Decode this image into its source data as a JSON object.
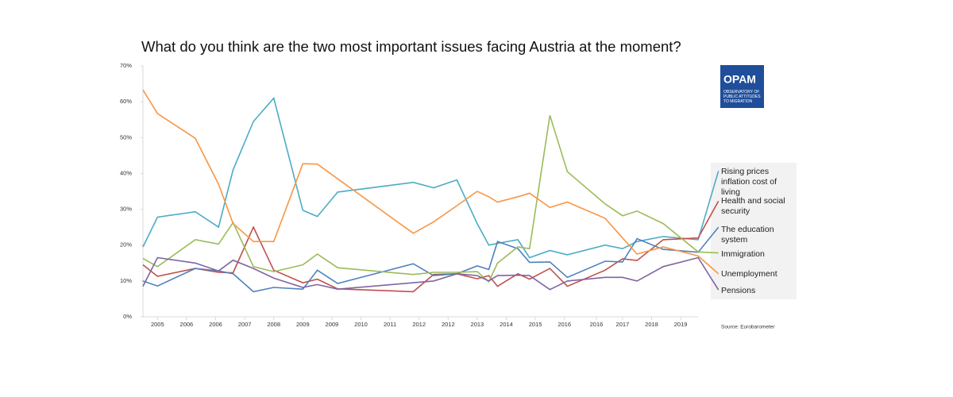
{
  "chart_data": {
    "type": "line",
    "title": "What do you think are the two most important issues facing Austria at the moment?",
    "source": "Source: Eurobarometer",
    "x": [
      0,
      0.5,
      1.8,
      2.6,
      3.1,
      3.8,
      4.5,
      5.5,
      6.0,
      6.7,
      9.3,
      10.0,
      10.8,
      11.5,
      11.9,
      12.2,
      12.9,
      13.3,
      14.0,
      14.6,
      15.9,
      16.5,
      17.0,
      17.9,
      19.1,
      19.8
    ],
    "xlim": [
      0,
      20
    ],
    "xticks": [
      {
        "value": 0.5,
        "label": "2005"
      },
      {
        "value": 1.5,
        "label": "2006"
      },
      {
        "value": 2.5,
        "label": "2006"
      },
      {
        "value": 3.5,
        "label": "2007"
      },
      {
        "value": 4.5,
        "label": "2008"
      },
      {
        "value": 5.5,
        "label": "2009"
      },
      {
        "value": 6.5,
        "label": "2009"
      },
      {
        "value": 7.5,
        "label": "2010"
      },
      {
        "value": 8.5,
        "label": "2011"
      },
      {
        "value": 9.5,
        "label": "2012"
      },
      {
        "value": 10.5,
        "label": "2012"
      },
      {
        "value": 11.5,
        "label": "2013"
      },
      {
        "value": 12.5,
        "label": "2014"
      },
      {
        "value": 13.5,
        "label": "2015"
      },
      {
        "value": 14.5,
        "label": "2016"
      },
      {
        "value": 15.6,
        "label": "2016"
      },
      {
        "value": 16.5,
        "label": "2017"
      },
      {
        "value": 17.5,
        "label": "2018"
      },
      {
        "value": 18.5,
        "label": "2019"
      }
    ],
    "ylim": [
      0,
      70
    ],
    "yticks": [
      {
        "value": 0,
        "label": "0%"
      },
      {
        "value": 10,
        "label": "10%"
      },
      {
        "value": 20,
        "label": "20%"
      },
      {
        "value": 30,
        "label": "30%"
      },
      {
        "value": 40,
        "label": "40%"
      },
      {
        "value": 50,
        "label": "50%"
      },
      {
        "value": 60,
        "label": "60%"
      },
      {
        "value": 70,
        "label": "70%"
      }
    ],
    "series": [
      {
        "name": "Rising prices\ninflation cost of living",
        "color": "#4bacc6",
        "values": [
          19.5,
          27.8,
          29.3,
          25,
          41,
          54.5,
          61,
          29.7,
          28,
          34.8,
          37.5,
          36,
          38.2,
          26,
          20,
          20.5,
          21.5,
          16.5,
          18.5,
          17.3,
          20,
          19,
          21,
          22.4,
          21.5,
          40.7
        ]
      },
      {
        "name": "Health and social\nsecurity",
        "color": "#c0504d",
        "values": [
          14.5,
          11.3,
          13.5,
          12.4,
          12.3,
          25,
          13,
          9.5,
          10.5,
          7.8,
          7,
          11.8,
          12,
          10.6,
          11.5,
          8.5,
          12,
          10.5,
          13.5,
          8.5,
          13,
          16.2,
          15.7,
          21.5,
          22,
          32.3
        ]
      },
      {
        "name": "The education system",
        "color": "#4f81bd",
        "values": [
          10,
          8.6,
          13.5,
          12.8,
          12,
          7,
          8.2,
          7.7,
          13,
          9.3,
          14.8,
          11.5,
          12,
          14.2,
          13.2,
          21,
          19,
          15.2,
          15.3,
          11,
          15.5,
          15.3,
          21.8,
          18.8,
          18,
          25
        ]
      },
      {
        "name": "Immigration",
        "color": "#9bbb59",
        "values": [
          16.3,
          14,
          21.5,
          20.3,
          26.3,
          14,
          12.6,
          14.5,
          17.5,
          13.7,
          11.8,
          12.4,
          12.4,
          12.6,
          9.8,
          15,
          19.5,
          19,
          56.2,
          40.5,
          31.5,
          28.2,
          29.5,
          26,
          18.1,
          17.8
        ]
      },
      {
        "name": "Unemployment",
        "color": "#f79646",
        "values": [
          63.3,
          56.7,
          49.8,
          37,
          26,
          21,
          21,
          42.7,
          42.6,
          38.5,
          23.3,
          26.5,
          31,
          35,
          33.5,
          32,
          33.5,
          34.5,
          30.5,
          32,
          27.5,
          22,
          17.5,
          19.5,
          17,
          12
        ]
      },
      {
        "name": "Pensions",
        "color": "#8064a2",
        "values": [
          8.5,
          16.5,
          15,
          12.8,
          15.8,
          13.5,
          10.8,
          8.2,
          9,
          7.7,
          9.5,
          10,
          12,
          11.5,
          10,
          11.5,
          11.6,
          11.5,
          7.6,
          10,
          11,
          11,
          10,
          14,
          16.5,
          7.5
        ]
      }
    ]
  },
  "logo": {
    "mark": "OPAM",
    "text": "OBSERVATORY OF\nPUBLIC ATTITUDES\nTO MIGRATION"
  }
}
